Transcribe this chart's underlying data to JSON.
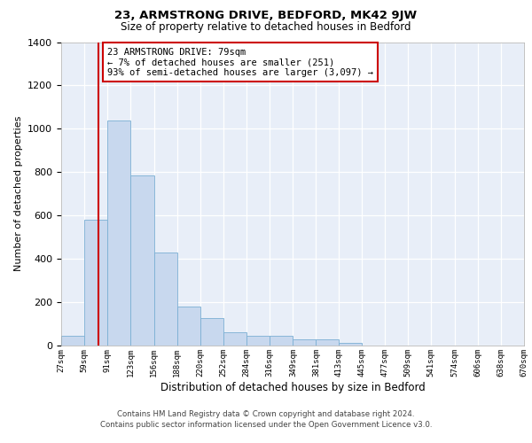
{
  "title": "23, ARMSTRONG DRIVE, BEDFORD, MK42 9JW",
  "subtitle": "Size of property relative to detached houses in Bedford",
  "xlabel": "Distribution of detached houses by size in Bedford",
  "ylabel": "Number of detached properties",
  "bar_color": "#c8d8ee",
  "bar_edge_color": "#7bafd4",
  "axes_bg_color": "#e8eef8",
  "vline_x": 79,
  "vline_color": "#cc0000",
  "bin_edges": [
    27,
    59,
    91,
    123,
    156,
    188,
    220,
    252,
    284,
    316,
    349,
    381,
    413,
    445,
    477,
    509,
    541,
    574,
    606,
    638,
    670
  ],
  "bar_heights": [
    45,
    580,
    1040,
    785,
    430,
    178,
    128,
    62,
    45,
    45,
    30,
    28,
    12,
    0,
    0,
    0,
    0,
    0,
    0,
    0
  ],
  "tick_labels": [
    "27sqm",
    "59sqm",
    "91sqm",
    "123sqm",
    "156sqm",
    "188sqm",
    "220sqm",
    "252sqm",
    "284sqm",
    "316sqm",
    "349sqm",
    "381sqm",
    "413sqm",
    "445sqm",
    "477sqm",
    "509sqm",
    "541sqm",
    "574sqm",
    "606sqm",
    "638sqm",
    "670sqm"
  ],
  "ylim": [
    0,
    1400
  ],
  "yticks": [
    0,
    200,
    400,
    600,
    800,
    1000,
    1200,
    1400
  ],
  "annotation_text": "23 ARMSTRONG DRIVE: 79sqm\n← 7% of detached houses are smaller (251)\n93% of semi-detached houses are larger (3,097) →",
  "annotation_box_edge_color": "#cc0000",
  "footer_line1": "Contains HM Land Registry data © Crown copyright and database right 2024.",
  "footer_line2": "Contains public sector information licensed under the Open Government Licence v3.0.",
  "fig_width": 6.0,
  "fig_height": 5.0,
  "dpi": 100
}
